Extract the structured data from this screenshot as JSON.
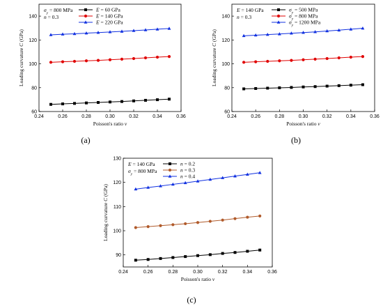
{
  "chart_data": [
    {
      "type": "line",
      "caption": "(a)",
      "xlabel": "Poisson's ratio ν",
      "ylabel": "Loading curvature C (GPa)",
      "xlim": [
        0.24,
        0.36
      ],
      "ylim": [
        60,
        150
      ],
      "xticks": [
        "0.24",
        "0.26",
        "0.28",
        "0.30",
        "0.32",
        "0.34",
        "0.36"
      ],
      "yticks": [
        "60",
        "80",
        "100",
        "120",
        "140"
      ],
      "notes": [
        "σy = 800 MPa",
        "n = 0.3"
      ],
      "legend_position": "top",
      "x": [
        0.25,
        0.26,
        0.27,
        0.28,
        0.29,
        0.3,
        0.31,
        0.32,
        0.33,
        0.34,
        0.35
      ],
      "series": [
        {
          "name": "E = 60 GPa",
          "color": "#000000",
          "marker": "square",
          "values": [
            66.0,
            66.4,
            66.8,
            67.2,
            67.6,
            68.0,
            68.4,
            68.9,
            69.4,
            69.9,
            70.4
          ]
        },
        {
          "name": "E = 140 GPa",
          "color": "#e00000",
          "marker": "circle",
          "values": [
            101.3,
            101.7,
            102.1,
            102.5,
            102.9,
            103.4,
            103.9,
            104.4,
            105.0,
            105.6,
            106.1
          ]
        },
        {
          "name": "E = 220 GPa",
          "color": "#1030e0",
          "marker": "triangle",
          "values": [
            124.3,
            124.8,
            125.2,
            125.7,
            126.2,
            126.7,
            127.2,
            127.8,
            128.4,
            129.0,
            129.6
          ]
        }
      ]
    },
    {
      "type": "line",
      "caption": "(b)",
      "xlabel": "Poisson's ratio ν",
      "ylabel": "Loading curvature C (GPa)",
      "xlim": [
        0.24,
        0.36
      ],
      "ylim": [
        60,
        150
      ],
      "xticks": [
        "0.24",
        "0.26",
        "0.28",
        "0.30",
        "0.32",
        "0.34",
        "0.36"
      ],
      "yticks": [
        "60",
        "80",
        "100",
        "120",
        "140"
      ],
      "notes": [
        "E = 140 GPa",
        "n = 0.3"
      ],
      "legend_position": "top",
      "x": [
        0.25,
        0.26,
        0.27,
        0.28,
        0.29,
        0.3,
        0.31,
        0.32,
        0.33,
        0.34,
        0.35
      ],
      "series": [
        {
          "name": "σy = 500 MPa",
          "color": "#000000",
          "marker": "square",
          "values": [
            79.0,
            79.3,
            79.6,
            79.9,
            80.2,
            80.6,
            80.9,
            81.3,
            81.7,
            82.1,
            82.5
          ]
        },
        {
          "name": "σy = 800 MPa",
          "color": "#e00000",
          "marker": "circle",
          "values": [
            101.3,
            101.7,
            102.1,
            102.5,
            102.9,
            103.4,
            103.9,
            104.4,
            105.0,
            105.6,
            106.1
          ]
        },
        {
          "name": "σy = 1200 MPa",
          "color": "#1030e0",
          "marker": "triangle",
          "values": [
            123.5,
            124.0,
            124.5,
            125.0,
            125.6,
            126.2,
            126.8,
            127.5,
            128.2,
            129.0,
            129.8
          ]
        }
      ]
    },
    {
      "type": "line",
      "caption": "(c)",
      "xlabel": "Poisson's ratio ν",
      "ylabel": "Loading curvature C (GPa)",
      "xlim": [
        0.24,
        0.36
      ],
      "ylim": [
        85,
        130
      ],
      "xticks": [
        "0.24",
        "0.26",
        "0.28",
        "0.30",
        "0.32",
        "0.34",
        "0.36"
      ],
      "yticks": [
        "90",
        "100",
        "110",
        "120",
        "130"
      ],
      "notes": [
        "E = 140 GPa",
        "σy = 800 MPa"
      ],
      "legend_position": "top",
      "x": [
        0.25,
        0.26,
        0.27,
        0.28,
        0.29,
        0.3,
        0.31,
        0.32,
        0.33,
        0.34,
        0.35
      ],
      "series": [
        {
          "name": "n = 0.2",
          "color": "#000000",
          "marker": "square",
          "values": [
            87.8,
            88.1,
            88.5,
            88.9,
            89.3,
            89.7,
            90.1,
            90.6,
            91.0,
            91.5,
            92.0
          ]
        },
        {
          "name": "n = 0.3",
          "color": "#b05a2a",
          "marker": "circle",
          "values": [
            101.3,
            101.7,
            102.1,
            102.5,
            102.9,
            103.4,
            103.9,
            104.4,
            105.0,
            105.6,
            106.1
          ]
        },
        {
          "name": "n = 0.4",
          "color": "#1030e0",
          "marker": "triangle",
          "values": [
            117.2,
            117.9,
            118.5,
            119.2,
            119.8,
            120.5,
            121.2,
            121.9,
            122.6,
            123.3,
            124.0
          ]
        }
      ]
    }
  ]
}
